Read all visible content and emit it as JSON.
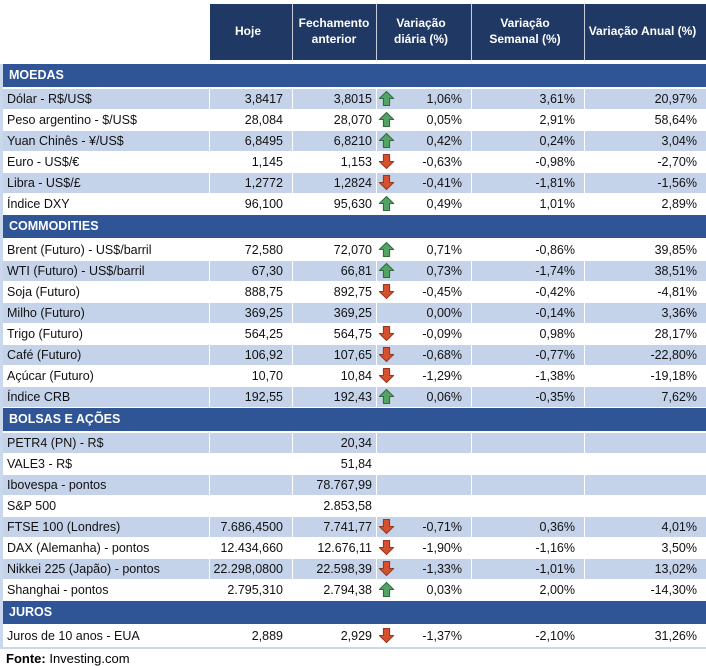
{
  "chart_data": {
    "type": "table",
    "columns": [
      "Hoje",
      "Fechamento anterior",
      "Variação diária (%)",
      "Variação Semanal (%)",
      "Variação Anual (%)"
    ],
    "sections": [
      {
        "title": "MOEDAS",
        "rows": [
          {
            "label": "Dólar - R$/US$",
            "today": "3,8417",
            "previous": "3,8015",
            "trend": "up",
            "daily": "1,06%",
            "weekly": "3,61%",
            "annual": "20,97%",
            "shaded": true
          },
          {
            "label": "Peso argentino - $/US$",
            "today": "28,084",
            "previous": "28,070",
            "trend": "up",
            "daily": "0,05%",
            "weekly": "2,91%",
            "annual": "58,64%",
            "shaded": false
          },
          {
            "label": "Yuan Chinês - ¥/US$",
            "today": "6,8495",
            "previous": "6,8210",
            "trend": "up",
            "daily": "0,42%",
            "weekly": "0,24%",
            "annual": "3,04%",
            "shaded": true
          },
          {
            "label": "Euro - US$/€",
            "today": "1,145",
            "previous": "1,153",
            "trend": "down",
            "daily": "-0,63%",
            "weekly": "-0,98%",
            "annual": "-2,70%",
            "shaded": false
          },
          {
            "label": "Libra - US$/£",
            "today": "1,2772",
            "previous": "1,2824",
            "trend": "down",
            "daily": "-0,41%",
            "weekly": "-1,81%",
            "annual": "-1,56%",
            "shaded": true
          },
          {
            "label": "Índice DXY",
            "today": "96,100",
            "previous": "95,630",
            "trend": "up",
            "daily": "0,49%",
            "weekly": "1,01%",
            "annual": "2,89%",
            "shaded": false
          }
        ]
      },
      {
        "title": "COMMODITIES",
        "rows": [
          {
            "label": "Brent (Futuro) - US$/barril",
            "today": "72,580",
            "previous": "72,070",
            "trend": "up",
            "daily": "0,71%",
            "weekly": "-0,86%",
            "annual": "39,85%",
            "shaded": false
          },
          {
            "label": "WTI (Futuro) - US$/barril",
            "today": "67,30",
            "previous": "66,81",
            "trend": "up",
            "daily": "0,73%",
            "weekly": "-1,74%",
            "annual": "38,51%",
            "shaded": true
          },
          {
            "label": "Soja (Futuro)",
            "today": "888,75",
            "previous": "892,75",
            "trend": "down",
            "daily": "-0,45%",
            "weekly": "-0,42%",
            "annual": "-4,81%",
            "shaded": false
          },
          {
            "label": "Milho (Futuro)",
            "today": "369,25",
            "previous": "369,25",
            "trend": "none",
            "daily": "0,00%",
            "weekly": "-0,14%",
            "annual": "3,36%",
            "shaded": true
          },
          {
            "label": "Trigo (Futuro)",
            "today": "564,25",
            "previous": "564,75",
            "trend": "down",
            "daily": "-0,09%",
            "weekly": "0,98%",
            "annual": "28,17%",
            "shaded": false
          },
          {
            "label": "Café (Futuro)",
            "today": "106,92",
            "previous": "107,65",
            "trend": "down",
            "daily": "-0,68%",
            "weekly": "-0,77%",
            "annual": "-22,80%",
            "shaded": true
          },
          {
            "label": "Açúcar (Futuro)",
            "today": "10,70",
            "previous": "10,84",
            "trend": "down",
            "daily": "-1,29%",
            "weekly": "-1,38%",
            "annual": "-19,18%",
            "shaded": false
          },
          {
            "label": "Índice CRB",
            "today": "192,55",
            "previous": "192,43",
            "trend": "up",
            "daily": "0,06%",
            "weekly": "-0,35%",
            "annual": "7,62%",
            "shaded": true
          }
        ]
      },
      {
        "title": "BOLSAS E AÇÕES",
        "rows": [
          {
            "label": "PETR4 (PN) - R$",
            "today": "",
            "previous": "20,34",
            "trend": "none",
            "daily": "",
            "weekly": "",
            "annual": "",
            "shaded": true
          },
          {
            "label": "VALE3 - R$",
            "today": "",
            "previous": "51,84",
            "trend": "none",
            "daily": "",
            "weekly": "",
            "annual": "",
            "shaded": false
          },
          {
            "label": "Ibovespa - pontos",
            "today": "",
            "previous": "78.767,99",
            "trend": "none",
            "daily": "",
            "weekly": "",
            "annual": "",
            "shaded": true
          },
          {
            "label": "S&P 500",
            "today": "",
            "previous": "2.853,58",
            "trend": "none",
            "daily": "",
            "weekly": "",
            "annual": "",
            "shaded": false
          },
          {
            "label": "FTSE 100 (Londres)",
            "today": "7.686,4500",
            "previous": "7.741,77",
            "trend": "down",
            "daily": "-0,71%",
            "weekly": "0,36%",
            "annual": "4,01%",
            "shaded": true
          },
          {
            "label": "DAX (Alemanha) - pontos",
            "today": "12.434,660",
            "previous": "12.676,11",
            "trend": "down",
            "daily": "-1,90%",
            "weekly": "-1,16%",
            "annual": "3,50%",
            "shaded": false
          },
          {
            "label": "Nikkei 225 (Japão) - pontos",
            "today": "22.298,0800",
            "previous": "22.598,39",
            "trend": "down",
            "daily": "-1,33%",
            "weekly": "-1,01%",
            "annual": "13,02%",
            "shaded": true
          },
          {
            "label": "Shanghai - pontos",
            "today": "2.795,310",
            "previous": "2.794,38",
            "trend": "up",
            "daily": "0,03%",
            "weekly": "2,00%",
            "annual": "-14,30%",
            "shaded": false
          }
        ]
      },
      {
        "title": "JUROS",
        "rows": [
          {
            "label": "Juros de 10 anos - EUA",
            "today": "2,889",
            "previous": "2,929",
            "trend": "down",
            "daily": "-1,37%",
            "weekly": "-2,10%",
            "annual": "31,26%",
            "shaded": false
          }
        ]
      }
    ]
  },
  "footer": {
    "source_label": "Fonte:",
    "source_value": " Investing.com"
  },
  "icons": {
    "up": "trend-up-arrow-icon",
    "down": "trend-down-arrow-icon"
  },
  "colors": {
    "header_bg": "#1F3864",
    "section_bg": "#2F5597",
    "row_shaded": "#C5D3EA",
    "edge_strip": "#C9D8EC",
    "up_arrow": "#55A266",
    "up_arrow_border": "#2F6B3C",
    "down_arrow": "#D4502E",
    "down_arrow_border": "#96371D"
  }
}
